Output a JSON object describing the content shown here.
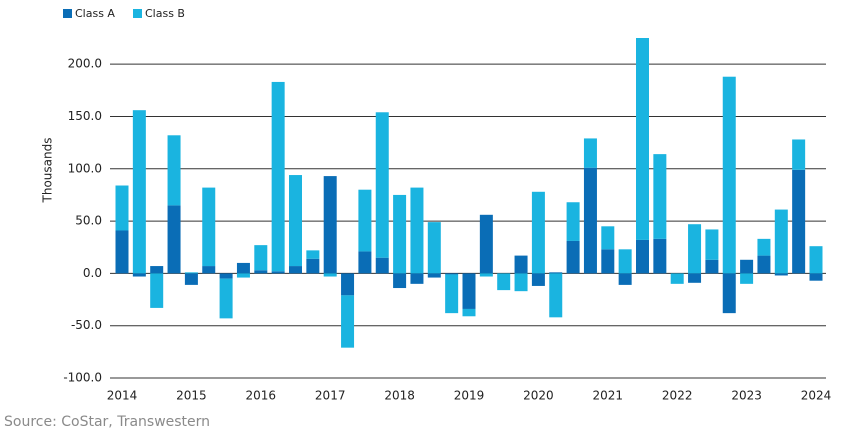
{
  "chart_data": {
    "type": "stacked_bar",
    "y_axis_label": "Thousands",
    "source": "Source: CoStar, Transwestern",
    "categories": [
      "2014",
      null,
      null,
      null,
      "2015",
      null,
      null,
      null,
      "2016",
      null,
      null,
      null,
      "2017",
      null,
      null,
      null,
      "2018",
      null,
      null,
      null,
      "2019",
      null,
      null,
      null,
      "2020",
      null,
      null,
      null,
      "2021",
      null,
      null,
      null,
      "2022",
      null,
      null,
      null,
      "2023",
      null,
      null,
      null,
      "2024"
    ],
    "series": [
      {
        "name": "Class A",
        "color": "#0a6db6",
        "values": [
          41,
          -3,
          7,
          65,
          -11,
          7,
          -5,
          10,
          3,
          2,
          7,
          14,
          93,
          -21,
          21,
          15,
          -14,
          -10,
          -4,
          -1,
          -34,
          56,
          0,
          17,
          -12,
          1,
          31,
          101,
          23,
          -11,
          32,
          33,
          0,
          -9,
          13,
          -38,
          13,
          17,
          -2,
          99,
          -7
        ]
      },
      {
        "name": "Class B",
        "color": "#1ab4e0",
        "values": [
          43,
          156,
          -33,
          67,
          1,
          75,
          -38,
          -4,
          24,
          181,
          87,
          8,
          -3,
          -50,
          59,
          139,
          75,
          82,
          49,
          -37,
          -7,
          -3,
          -16,
          -17,
          78,
          -42,
          37,
          28,
          22,
          23,
          193,
          81,
          -10,
          47,
          29,
          188,
          -10,
          16,
          61,
          29,
          26
        ]
      }
    ],
    "ylim": [
      -100,
      225
    ],
    "yticks": [
      {
        "value": -100,
        "label": "-100.0"
      },
      {
        "value": -50,
        "label": "-50.0"
      },
      {
        "value": 0,
        "label": "0.0"
      },
      {
        "value": 50,
        "label": "50.0"
      },
      {
        "value": 100,
        "label": "100.0"
      },
      {
        "value": 150,
        "label": "150.0"
      },
      {
        "value": 200,
        "label": "200.0"
      }
    ],
    "grid": true
  }
}
